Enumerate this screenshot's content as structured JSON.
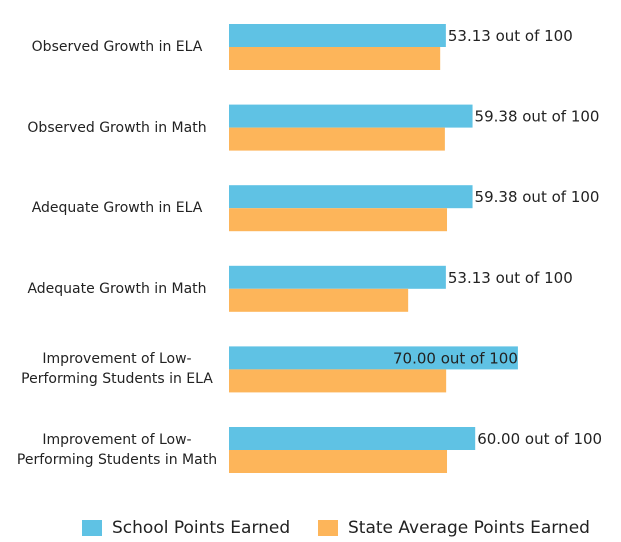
{
  "chart_data": {
    "type": "bar",
    "orientation": "horizontal",
    "categories": [
      "Observed Growth in ELA",
      "Observed Growth in Math",
      "Adequate Growth in ELA",
      "Adequate Growth in Math",
      "Improvement of Low-Performing Students in ELA",
      "Improvement of Low-Performing Students in Math"
    ],
    "series": [
      {
        "name": "School Points Earned",
        "color": "#5fc2e4",
        "values": [
          53.13,
          59.38,
          59.38,
          53.13,
          70.0,
          60.0
        ],
        "value_labels": [
          "53.13 out of 100",
          "59.38 out of 100",
          "59.38 out of 100",
          "53.13 out of 100",
          "70.00 out of 100",
          "60.00 out of 100"
        ]
      },
      {
        "name": "State Average Points Earned",
        "color": "#fdb55a",
        "values": [
          51.8,
          52.9,
          53.4,
          44.3,
          53.2,
          53.4
        ]
      }
    ]
  }
}
